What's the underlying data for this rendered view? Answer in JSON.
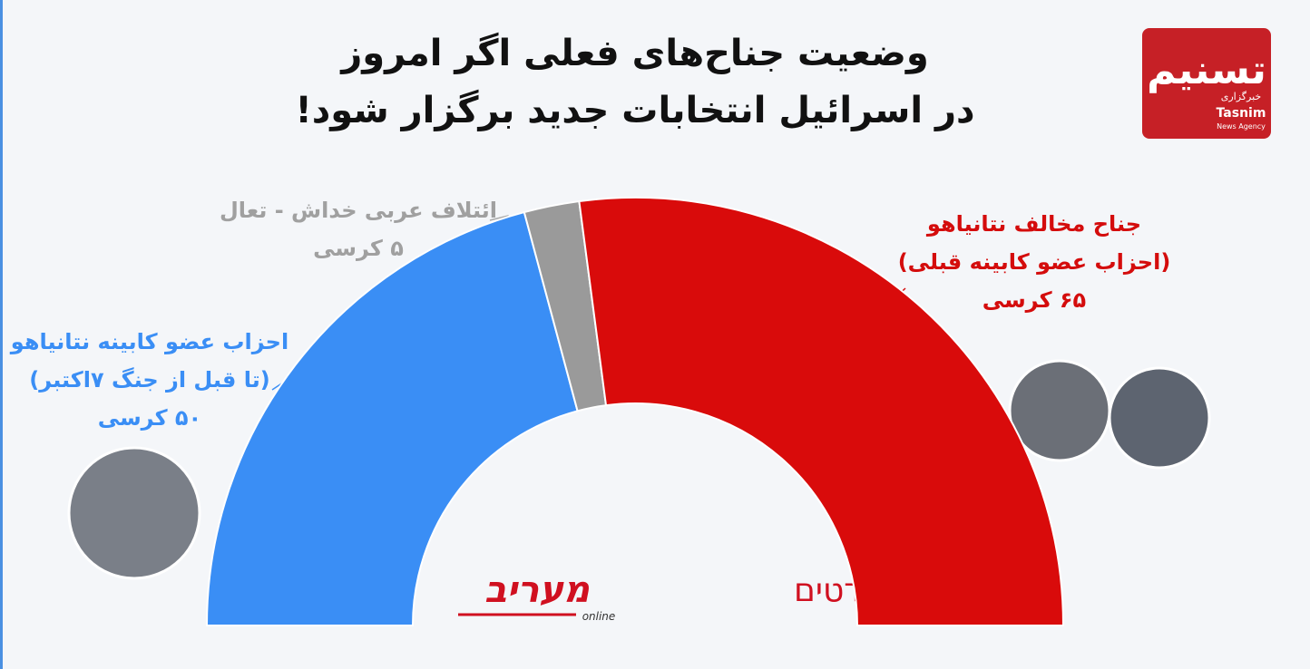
{
  "chart_data": {
    "type": "semi-donut",
    "title": [
      "وضعیت جناح‌های فعلی اگر امروز",
      "در اسرائیل انتخابات جدید برگزار شود!"
    ],
    "categories": [
      "احزاب عضو کابینه نتانیاهو",
      "ائتلاف عربی خداش - تعال",
      "جناح مخالف نتانیاهو"
    ],
    "category_notes": [
      "(تا قبل از جنگ ۷اکتبر)",
      null,
      "(احزاب عضو کابینه قبلی)"
    ],
    "values": [
      50,
      5,
      65
    ],
    "value_labels": [
      "۵۰ کرسی",
      "۵ کرسی",
      "۶۵ کرسی"
    ],
    "colors": [
      "#3a8ef5",
      "#9a9a9a",
      "#d90b0b"
    ],
    "label_colors": [
      "#3a8ef5",
      "#a0a0a0",
      "#d40c0c"
    ]
  },
  "logo": {
    "name": "تسنیم",
    "label": "خبرگزاری",
    "latin": "Tasnim",
    "tagline": "News Agency"
  },
  "source": {
    "text": "סקר מנדטים",
    "brand": "מעריב",
    "brand_sub": "online"
  }
}
